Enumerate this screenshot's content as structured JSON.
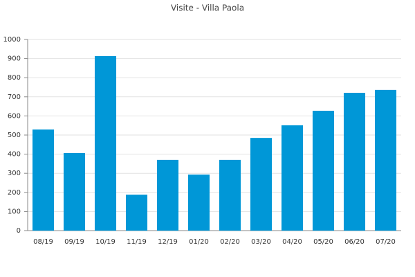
{
  "chart_data": {
    "type": "bar",
    "title": "Visite - Villa Paola",
    "categories": [
      "08/19",
      "09/19",
      "10/19",
      "11/19",
      "12/19",
      "01/20",
      "02/20",
      "03/20",
      "04/20",
      "05/20",
      "06/20",
      "07/20"
    ],
    "values": [
      529,
      406,
      913,
      188,
      370,
      293,
      370,
      485,
      551,
      627,
      721,
      736
    ],
    "color": "#0097d7",
    "ylim": [
      0,
      1000
    ],
    "yticks": [
      0,
      100,
      200,
      300,
      400,
      500,
      600,
      700,
      800,
      900,
      1000
    ],
    "grid": true
  }
}
